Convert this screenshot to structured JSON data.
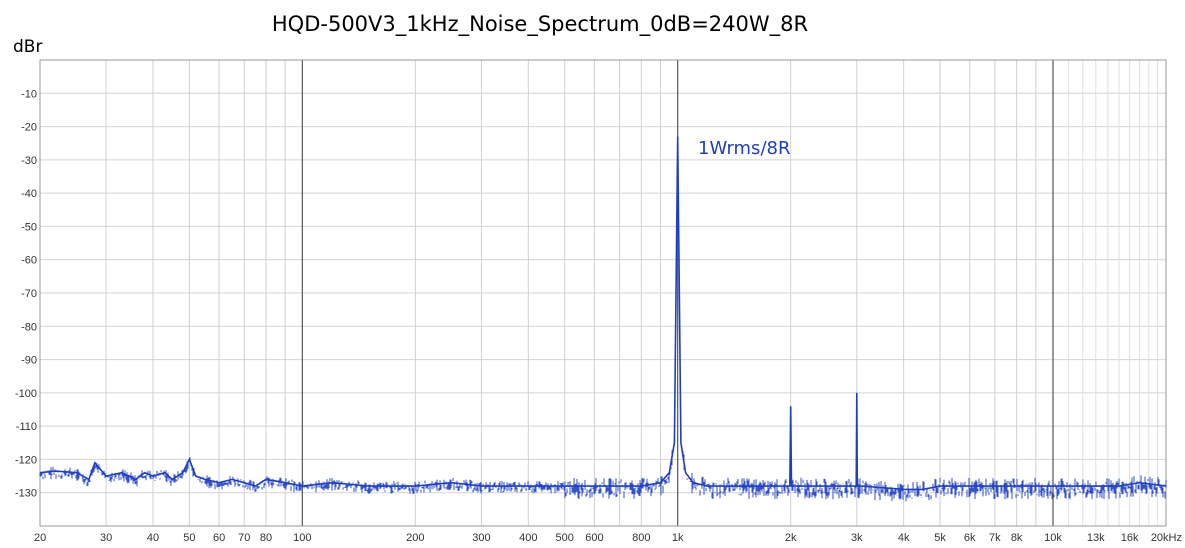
{
  "chart_data": {
    "type": "line",
    "title": "HQD-500V3_1kHz_Noise_Spectrum_0dB=240W_8R",
    "ylabel": "dBr",
    "xscale": "log",
    "xlim": [
      20,
      20000
    ],
    "ylim": [
      -140,
      0
    ],
    "grid": true,
    "y_ticks": [
      -10,
      -20,
      -30,
      -40,
      -50,
      -60,
      -70,
      -80,
      -90,
      -100,
      -110,
      -120,
      -130
    ],
    "y_tick_labels": [
      "-10",
      "-20",
      "-30",
      "-40",
      "-50",
      "-60",
      "-70",
      "-80",
      "-90",
      "-100",
      "-110",
      "-120",
      "-130"
    ],
    "x_ticks": [
      20,
      30,
      40,
      50,
      60,
      70,
      80,
      100,
      200,
      300,
      400,
      500,
      600,
      800,
      1000,
      2000,
      3000,
      4000,
      5000,
      6000,
      7000,
      8000,
      10000,
      13000,
      16000,
      20000
    ],
    "x_tick_labels": [
      "20",
      "30",
      "40",
      "50",
      "60",
      "70",
      "80",
      "100",
      "200",
      "300",
      "400",
      "500",
      "600",
      "800",
      "1k",
      "2k",
      "3k",
      "4k",
      "5k",
      "6k",
      "7k",
      "8k",
      "10k",
      "13k",
      "16k",
      "20kHz"
    ],
    "annotation": "1Wrms/8R",
    "series": [
      {
        "color": "#1f3fbf",
        "x": [
          20,
          22,
          25,
          27,
          28,
          30,
          33,
          36,
          38,
          40,
          43,
          45,
          48,
          50,
          52,
          55,
          60,
          65,
          70,
          75,
          80,
          90,
          100,
          120,
          150,
          200,
          250,
          300,
          400,
          500,
          600,
          700,
          800,
          900,
          950,
          980,
          1000,
          1020,
          1050,
          1100,
          1200,
          1500,
          1900,
          1990,
          2000,
          2010,
          2100,
          2500,
          2900,
          2990,
          3000,
          3010,
          3100,
          4000,
          4500,
          5000,
          6000,
          8000,
          10000,
          12000,
          15000,
          17000,
          20000
        ],
        "y": [
          -124,
          -123.5,
          -124,
          -126,
          -121,
          -125,
          -124,
          -126,
          -124,
          -125,
          -124,
          -126,
          -124,
          -120,
          -125,
          -126,
          -127,
          -126,
          -127,
          -128,
          -126,
          -127,
          -128,
          -127,
          -128,
          -128,
          -127,
          -128,
          -128,
          -128,
          -128,
          -128,
          -128,
          -127,
          -124,
          -115,
          -23,
          -115,
          -124,
          -127,
          -128,
          -128,
          -128,
          -128,
          -104,
          -128,
          -128,
          -128,
          -128,
          -128,
          -100,
          -128,
          -128,
          -129,
          -129,
          -128,
          -128,
          -128,
          -128,
          -128,
          -128,
          -127,
          -128
        ]
      }
    ]
  }
}
